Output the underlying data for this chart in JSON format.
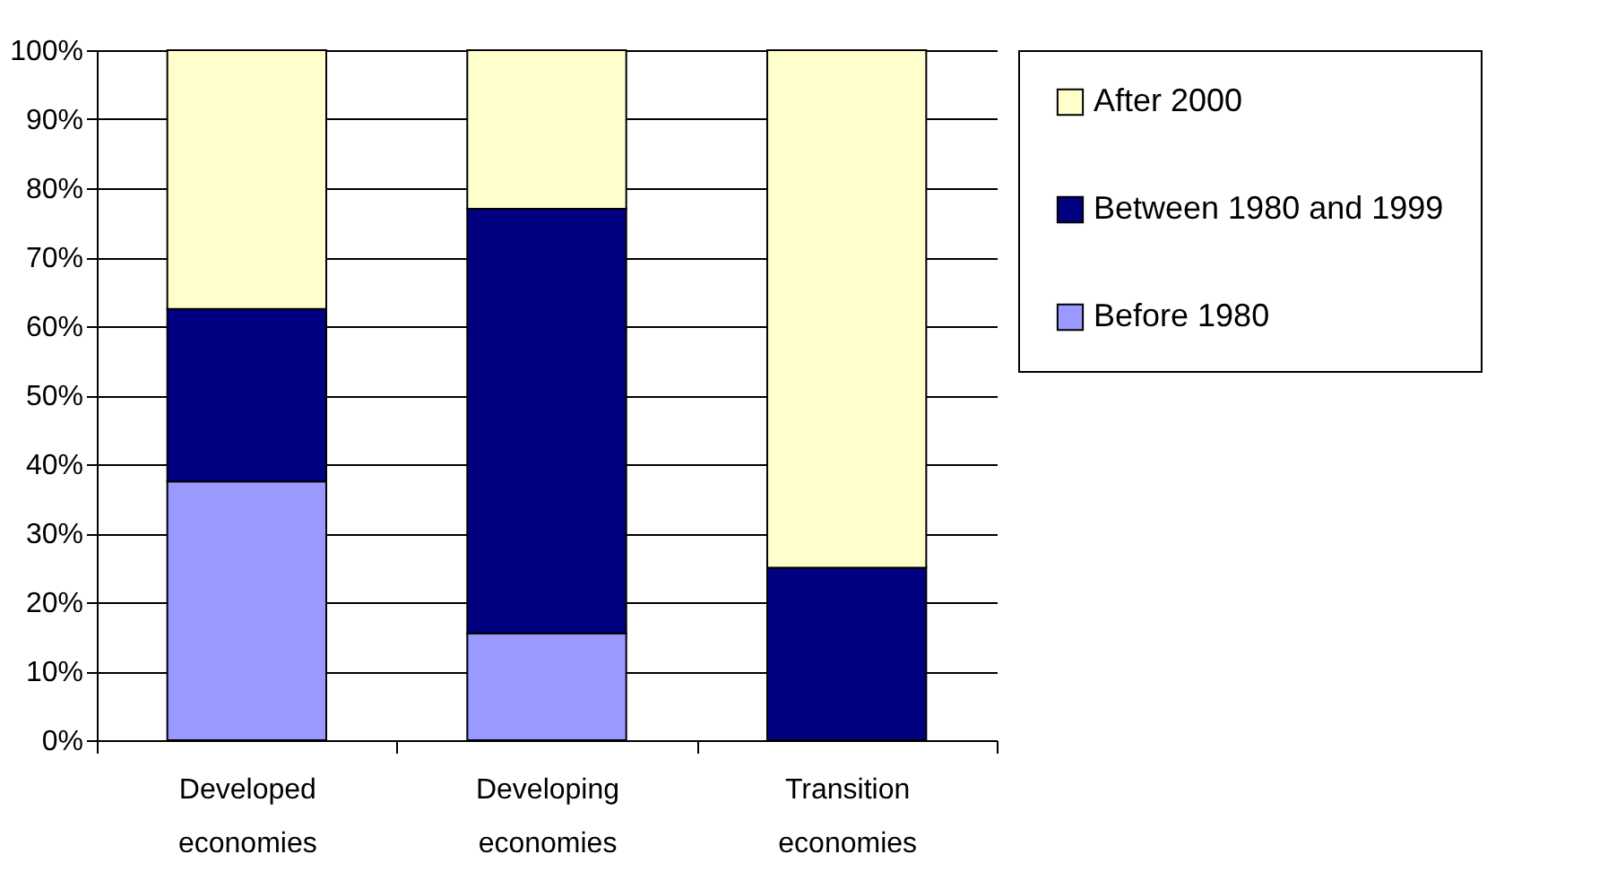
{
  "chart_data": {
    "type": "bar",
    "stacked": true,
    "categories": [
      "Developed economies",
      "Developing economies",
      "Transition economies"
    ],
    "series": [
      {
        "name": "Before 1980",
        "color": "#9999ff",
        "values": [
          37.5,
          15.5,
          0
        ]
      },
      {
        "name": "Between 1980 and 1999",
        "color": "#000080",
        "values": [
          25,
          61.5,
          25
        ]
      },
      {
        "name": "After 2000",
        "color": "#ffffcc",
        "values": [
          37.5,
          23,
          75
        ]
      }
    ],
    "ylim": [
      0,
      100
    ],
    "yticks": [
      {
        "value": 0,
        "label": "0%"
      },
      {
        "value": 10,
        "label": "10%"
      },
      {
        "value": 20,
        "label": "20%"
      },
      {
        "value": 30,
        "label": "30%"
      },
      {
        "value": 40,
        "label": "40%"
      },
      {
        "value": 50,
        "label": "50%"
      },
      {
        "value": 60,
        "label": "60%"
      },
      {
        "value": 70,
        "label": "70%"
      },
      {
        "value": 80,
        "label": "80%"
      },
      {
        "value": 90,
        "label": "90%"
      },
      {
        "value": 100,
        "label": "100%"
      }
    ],
    "grid": "y",
    "legend": "right"
  }
}
